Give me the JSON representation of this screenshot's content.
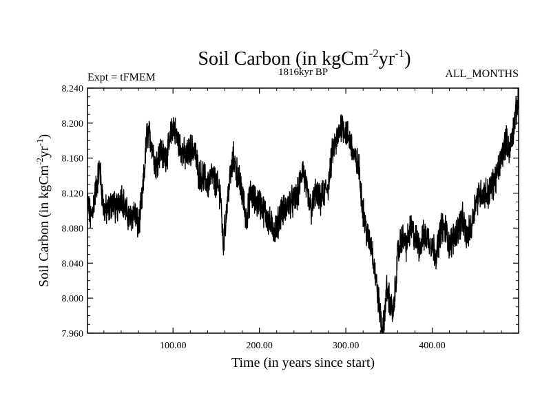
{
  "chart_data": {
    "type": "line",
    "title_main": "Soil Carbon (in kgCm",
    "title_sup1": "-2",
    "title_mid": "yr",
    "title_sup2": "-1",
    "title_end": ")",
    "subtitle_left": "Expt = tFMEM",
    "subtitle_center": "1816kyr BP",
    "subtitle_right": "ALL_MONTHS",
    "xlabel": "Time (in years since start)",
    "ylabel_main": "Soil Carbon (in kgCm",
    "ylabel_sup1": "-2",
    "ylabel_mid": "yr",
    "ylabel_sup2": "-1",
    "ylabel_end": ")",
    "xlim": [
      1,
      500
    ],
    "ylim": [
      7.96,
      8.24
    ],
    "x_ticks": [
      100,
      200,
      300,
      400
    ],
    "x_tick_labels": [
      "100.00",
      "200.00",
      "300.00",
      "400.00"
    ],
    "y_ticks": [
      7.96,
      8.0,
      8.04,
      8.08,
      8.12,
      8.16,
      8.2,
      8.24
    ],
    "y_tick_labels": [
      "7.960",
      "8.000",
      "8.040",
      "8.080",
      "8.120",
      "8.160",
      "8.200",
      "8.240"
    ],
    "line_color": "#000000",
    "series": [
      {
        "name": "Soil Carbon",
        "x": [
          1,
          5,
          10,
          15,
          20,
          25,
          30,
          35,
          40,
          45,
          50,
          55,
          60,
          65,
          70,
          75,
          80,
          85,
          90,
          95,
          100,
          105,
          110,
          115,
          120,
          125,
          130,
          135,
          140,
          145,
          150,
          155,
          158,
          162,
          165,
          170,
          175,
          180,
          185,
          190,
          195,
          200,
          205,
          210,
          215,
          220,
          225,
          230,
          235,
          240,
          245,
          250,
          255,
          260,
          265,
          270,
          275,
          280,
          285,
          290,
          295,
          300,
          305,
          310,
          315,
          320,
          325,
          330,
          335,
          340,
          343,
          347,
          350,
          355,
          360,
          365,
          370,
          375,
          380,
          385,
          390,
          395,
          400,
          405,
          410,
          415,
          420,
          425,
          430,
          435,
          440,
          445,
          450,
          455,
          460,
          465,
          470,
          475,
          480,
          485,
          490,
          495,
          500
        ],
        "y": [
          8.11,
          8.09,
          8.12,
          8.15,
          8.1,
          8.1,
          8.11,
          8.1,
          8.12,
          8.1,
          8.09,
          8.1,
          8.08,
          8.12,
          8.19,
          8.18,
          8.15,
          8.17,
          8.16,
          8.17,
          8.2,
          8.18,
          8.17,
          8.16,
          8.17,
          8.17,
          8.14,
          8.14,
          8.13,
          8.14,
          8.13,
          8.12,
          8.06,
          8.1,
          8.13,
          8.16,
          8.14,
          8.12,
          8.09,
          8.12,
          8.11,
          8.11,
          8.1,
          8.09,
          8.08,
          8.08,
          8.1,
          8.1,
          8.11,
          8.11,
          8.12,
          8.15,
          8.12,
          8.1,
          8.12,
          8.11,
          8.12,
          8.13,
          8.17,
          8.18,
          8.2,
          8.19,
          8.18,
          8.16,
          8.15,
          8.1,
          8.07,
          8.06,
          8.02,
          7.98,
          7.96,
          8.01,
          8.0,
          7.98,
          8.05,
          8.07,
          8.06,
          8.08,
          8.07,
          8.06,
          8.07,
          8.07,
          8.06,
          8.05,
          8.08,
          8.08,
          8.06,
          8.07,
          8.08,
          8.09,
          8.07,
          8.08,
          8.11,
          8.12,
          8.12,
          8.12,
          8.13,
          8.14,
          8.16,
          8.18,
          8.17,
          8.2,
          8.23
        ]
      }
    ]
  }
}
